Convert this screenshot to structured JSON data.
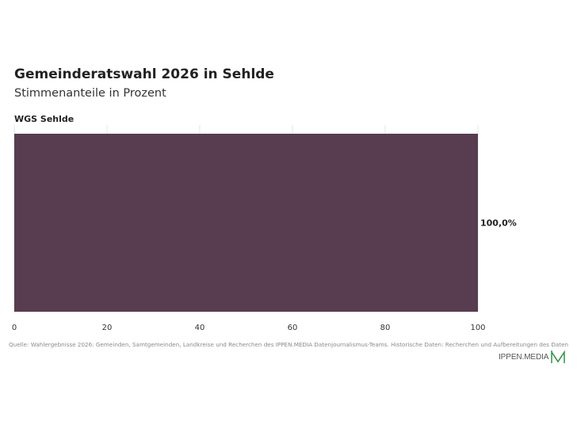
{
  "title": "Gemeinderatswahl 2026 in Sehlde",
  "subtitle": "Stimmenanteile in Prozent",
  "source": "Quelle: Wahlergebnisse 2026: Gemeinden, Samtgemeinden, Landkreise und Recherchen des IPPEN.MEDIA Datenjournalismus-Teams. Historische Daten: Recherchen und Aufbereitungen des Daten",
  "logo_text": "IPPEN.MEDIA",
  "colors": {
    "bar": "#573d4f",
    "grid": "#e6e6e6",
    "logo_mark": "#3a9a4f"
  },
  "chart_data": {
    "type": "bar",
    "orientation": "horizontal",
    "categories": [
      "WGS Sehlde"
    ],
    "values": [
      100.0
    ],
    "value_labels": [
      "100,0%"
    ],
    "xlim": [
      0,
      100
    ],
    "x_ticks": [
      0,
      20,
      40,
      60,
      80,
      100
    ],
    "x_tick_labels": [
      "0",
      "20",
      "40",
      "60",
      "80",
      "100"
    ],
    "grid": "vertical",
    "legend": "none"
  }
}
